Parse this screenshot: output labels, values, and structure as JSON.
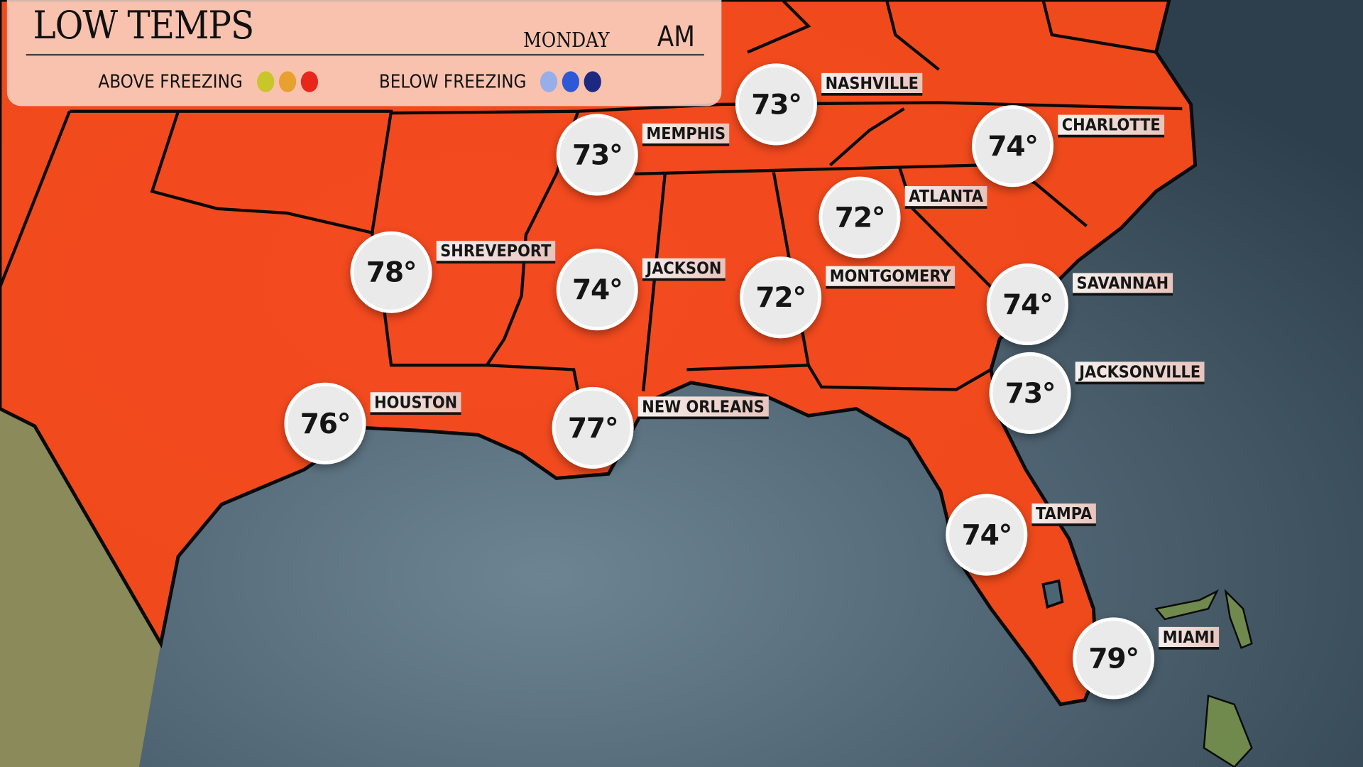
{
  "header": {
    "title": "LOW TEMPS",
    "day": "MONDAY",
    "period": "AM",
    "legend": {
      "above_label": "ABOVE FREEZING",
      "above_colors": [
        "#c8c62a",
        "#e8a02e",
        "#e8261c"
      ],
      "below_label": "BELOW FREEZING",
      "below_colors": [
        "#97aee8",
        "#2f58d6",
        "#1c2980"
      ]
    }
  },
  "colors": {
    "land": "#f2461e",
    "ocean": "#4c6575",
    "border": "#0a0a0a"
  },
  "cities": [
    {
      "name": "NASHVILLE",
      "temp": "73°"
    },
    {
      "name": "MEMPHIS",
      "temp": "73°"
    },
    {
      "name": "CHARLOTTE",
      "temp": "74°"
    },
    {
      "name": "ATLANTA",
      "temp": "72°"
    },
    {
      "name": "SHREVEPORT",
      "temp": "78°"
    },
    {
      "name": "JACKSON",
      "temp": "74°"
    },
    {
      "name": "MONTGOMERY",
      "temp": "72°"
    },
    {
      "name": "SAVANNAH",
      "temp": "74°"
    },
    {
      "name": "JACKSONVILLE",
      "temp": "73°"
    },
    {
      "name": "HOUSTON",
      "temp": "76°"
    },
    {
      "name": "NEW ORLEANS",
      "temp": "77°"
    },
    {
      "name": "TAMPA",
      "temp": "74°"
    },
    {
      "name": "MIAMI",
      "temp": "79°"
    }
  ]
}
